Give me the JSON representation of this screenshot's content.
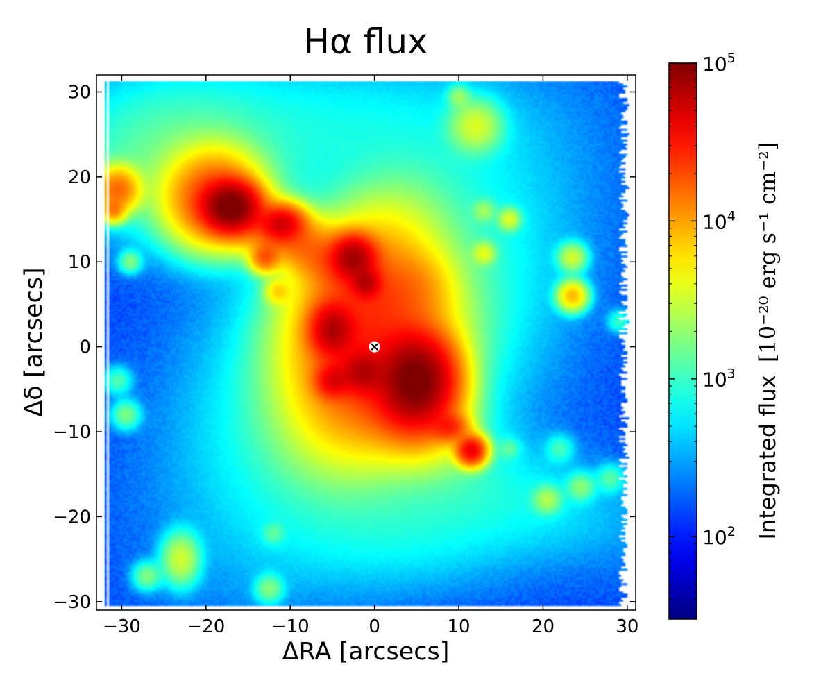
{
  "chart_data": {
    "type": "heatmap",
    "title": "Hα flux",
    "xlabel": "ΔRA [arcsecs]",
    "ylabel": "Δδ [arcsecs]",
    "xlim": [
      -33,
      31
    ],
    "ylim": [
      -31,
      32
    ],
    "xticks": [
      -30,
      -20,
      -10,
      0,
      10,
      20,
      30
    ],
    "xtick_labels": [
      "−30",
      "−20",
      "−10",
      "0",
      "10",
      "20",
      "30"
    ],
    "yticks": [
      -30,
      -20,
      -10,
      0,
      10,
      20,
      30
    ],
    "ytick_labels": [
      "−30",
      "−20",
      "−10",
      "0",
      "10",
      "20",
      "30"
    ],
    "colormap": "jet",
    "color_scale": "log",
    "colorbar": {
      "label_text": "Integrated flux",
      "label_units": "[10⁻²⁰ erg s⁻¹ cm⁻²]",
      "range": [
        30,
        100000
      ],
      "ticks": [
        {
          "value": 100,
          "base": "10",
          "exp": "2"
        },
        {
          "value": 1000,
          "base": "10",
          "exp": "3"
        },
        {
          "value": 10000,
          "base": "10",
          "exp": "4"
        },
        {
          "value": 100000,
          "base": "10",
          "exp": "5"
        }
      ]
    },
    "background_level": 150,
    "diffuse_regions": [
      {
        "x": 0,
        "y": 0,
        "sx": 9,
        "sy": 15,
        "rot": -35,
        "flux": 1500
      },
      {
        "x": -20,
        "y": 18,
        "sx": 6,
        "sy": 4,
        "rot": 0,
        "flux": 1500
      },
      {
        "x": -26,
        "y": 24,
        "sx": 8,
        "sy": 5,
        "rot": 10,
        "flux": 800
      },
      {
        "x": -8,
        "y": 26,
        "sx": 14,
        "sy": 5,
        "rot": 0,
        "flux": 500
      },
      {
        "x": 12,
        "y": -16,
        "sx": 12,
        "sy": 4,
        "rot": -15,
        "flux": 500
      },
      {
        "x": 5,
        "y": -22,
        "sx": 9,
        "sy": 4,
        "rot": 0,
        "flux": 400
      }
    ],
    "emission_knots": [
      {
        "x": 0,
        "y": -2,
        "sx": 4.5,
        "sy": 6,
        "rot": -30,
        "flux": 20000
      },
      {
        "x": -2,
        "y": 6,
        "sx": 4,
        "sy": 6,
        "rot": -30,
        "flux": 15000
      },
      {
        "x": -7,
        "y": 11,
        "sx": 5,
        "sy": 2,
        "rot": -30,
        "flux": 10000
      },
      {
        "x": -13,
        "y": 14,
        "sx": 5,
        "sy": 2,
        "rot": -20,
        "flux": 8000
      },
      {
        "x": 4,
        "y": -8,
        "sx": 4,
        "sy": 3,
        "rot": -30,
        "flux": 8000
      },
      {
        "x": 5,
        "y": 7,
        "sx": 2.5,
        "sy": 2.5,
        "rot": 0,
        "flux": 5000
      },
      {
        "x": 5,
        "y": -4,
        "sx": 2.5,
        "sy": 3,
        "rot": 0,
        "flux": 100000
      },
      {
        "x": -17,
        "y": 16.5,
        "sx": 1.8,
        "sy": 1.6,
        "rot": 0,
        "flux": 100000
      },
      {
        "x": -19,
        "y": 17.5,
        "sx": 3,
        "sy": 3,
        "rot": 0,
        "flux": 20000
      },
      {
        "x": -2.5,
        "y": 10.5,
        "sx": 1.5,
        "sy": 1.5,
        "rot": 0,
        "flux": 60000
      },
      {
        "x": -11,
        "y": 14.5,
        "sx": 1.5,
        "sy": 1.2,
        "rot": 0,
        "flux": 40000
      },
      {
        "x": -5,
        "y": 2,
        "sx": 1.5,
        "sy": 1.8,
        "rot": 0,
        "flux": 50000
      },
      {
        "x": -1.5,
        "y": -3,
        "sx": 1.5,
        "sy": 1.5,
        "rot": 0,
        "flux": 40000
      },
      {
        "x": -5,
        "y": -4,
        "sx": 1.2,
        "sy": 1.2,
        "rot": 0,
        "flux": 30000
      },
      {
        "x": -1,
        "y": 7.5,
        "sx": 1,
        "sy": 1,
        "rot": 0,
        "flux": 40000
      },
      {
        "x": 9,
        "y": -9.5,
        "sx": 1.3,
        "sy": 1,
        "rot": 0,
        "flux": 20000
      },
      {
        "x": 11.5,
        "y": -12.2,
        "sx": 1,
        "sy": 1,
        "rot": 0,
        "flux": 40000
      },
      {
        "x": -13,
        "y": 10.5,
        "sx": 1,
        "sy": 1,
        "rot": 0,
        "flux": 15000
      },
      {
        "x": -11.5,
        "y": 6.5,
        "sx": 0.9,
        "sy": 0.9,
        "rot": 0,
        "flux": 5000
      },
      {
        "x": -30.5,
        "y": 18.5,
        "sx": 1.5,
        "sy": 1.5,
        "rot": 0,
        "flux": 15000
      },
      {
        "x": -31,
        "y": 16,
        "sx": 0.8,
        "sy": 0.8,
        "rot": 0,
        "flux": 10000
      },
      {
        "x": 23.5,
        "y": 6,
        "sx": 1,
        "sy": 1,
        "rot": 0,
        "flux": 8000
      },
      {
        "x": 23.5,
        "y": 10.5,
        "sx": 1,
        "sy": 1,
        "rot": 0,
        "flux": 3000
      },
      {
        "x": 13,
        "y": 11,
        "sx": 0.8,
        "sy": 0.8,
        "rot": 0,
        "flux": 3000
      },
      {
        "x": 16,
        "y": 15,
        "sx": 0.8,
        "sy": 0.8,
        "rot": 0,
        "flux": 3000
      },
      {
        "x": 12,
        "y": 26,
        "sx": 1.8,
        "sy": 1.8,
        "rot": 0,
        "flux": 3000
      },
      {
        "x": 10,
        "y": 29.5,
        "sx": 0.8,
        "sy": 0.8,
        "rot": 0,
        "flux": 1500
      },
      {
        "x": -23,
        "y": -25,
        "sx": 1.3,
        "sy": 1.8,
        "rot": 0,
        "flux": 3000
      },
      {
        "x": -27,
        "y": -27,
        "sx": 1,
        "sy": 1,
        "rot": 0,
        "flux": 1500
      },
      {
        "x": -29.5,
        "y": -8,
        "sx": 1,
        "sy": 1,
        "rot": 0,
        "flux": 1500
      },
      {
        "x": -30.5,
        "y": -4,
        "sx": 1,
        "sy": 1,
        "rot": 0,
        "flux": 1000
      },
      {
        "x": -29,
        "y": 10,
        "sx": 0.8,
        "sy": 0.8,
        "rot": 0,
        "flux": 1500
      },
      {
        "x": 20.5,
        "y": -18,
        "sx": 1,
        "sy": 1,
        "rot": 0,
        "flux": 2000
      },
      {
        "x": 24.5,
        "y": -16.5,
        "sx": 1,
        "sy": 1,
        "rot": 0,
        "flux": 1500
      },
      {
        "x": 28,
        "y": -15.5,
        "sx": 1,
        "sy": 1,
        "rot": 0,
        "flux": 1000
      },
      {
        "x": 22,
        "y": -12,
        "sx": 1,
        "sy": 1,
        "rot": 0,
        "flux": 800
      },
      {
        "x": -12.5,
        "y": -28.5,
        "sx": 1,
        "sy": 1,
        "rot": 0,
        "flux": 1500
      },
      {
        "x": -12,
        "y": -22,
        "sx": 0.8,
        "sy": 0.8,
        "rot": 0,
        "flux": 800
      },
      {
        "x": 16,
        "y": -12,
        "sx": 0.8,
        "sy": 0.8,
        "rot": 0,
        "flux": 800
      },
      {
        "x": 13,
        "y": 16,
        "sx": 0.8,
        "sy": 0.8,
        "rot": 0,
        "flux": 1500
      },
      {
        "x": 29,
        "y": 3,
        "sx": 0.8,
        "sy": 0.8,
        "rot": 0,
        "flux": 800
      }
    ],
    "center_marker": {
      "x": 0,
      "y": 0,
      "symbol": "×"
    }
  }
}
